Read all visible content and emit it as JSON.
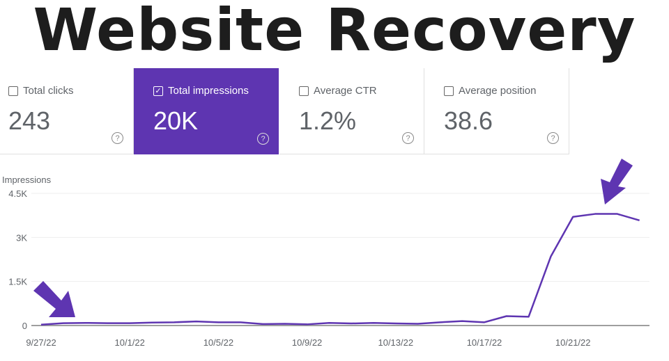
{
  "title": "Website Recovery",
  "cards": [
    {
      "label": "Total clicks",
      "value": "243",
      "checked": false
    },
    {
      "label": "Total impressions",
      "value": "20K",
      "checked": true
    },
    {
      "label": "Average CTR",
      "value": "1.2%",
      "checked": false
    },
    {
      "label": "Average position",
      "value": "38.6",
      "checked": false
    }
  ],
  "help_glyph": "?",
  "check_glyph": "✓",
  "colors": {
    "accent": "#5e35b1",
    "line": "#5e35b1"
  },
  "chart_data": {
    "type": "line",
    "ylabel": "Impressions",
    "ylim": [
      0,
      4500
    ],
    "yticks": [
      {
        "v": 0,
        "label": "0"
      },
      {
        "v": 1500,
        "label": "1.5K"
      },
      {
        "v": 3000,
        "label": "3K"
      },
      {
        "v": 4500,
        "label": "4.5K"
      }
    ],
    "xticks": [
      {
        "i": 0,
        "label": "9/27/22"
      },
      {
        "i": 4,
        "label": "10/1/22"
      },
      {
        "i": 8,
        "label": "10/5/22"
      },
      {
        "i": 12,
        "label": "10/9/22"
      },
      {
        "i": 16,
        "label": "10/13/22"
      },
      {
        "i": 20,
        "label": "10/17/22"
      },
      {
        "i": 24,
        "label": "10/21/22"
      }
    ],
    "x": [
      "9/27",
      "9/28",
      "9/29",
      "9/30",
      "10/1",
      "10/2",
      "10/3",
      "10/4",
      "10/5",
      "10/6",
      "10/7",
      "10/8",
      "10/9",
      "10/10",
      "10/11",
      "10/12",
      "10/13",
      "10/14",
      "10/15",
      "10/16",
      "10/17",
      "10/18",
      "10/19",
      "10/20",
      "10/21",
      "10/22",
      "10/23",
      "10/24"
    ],
    "series": [
      {
        "name": "Impressions",
        "values": [
          30,
          80,
          90,
          80,
          80,
          100,
          110,
          140,
          110,
          110,
          50,
          60,
          40,
          90,
          70,
          90,
          70,
          60,
          110,
          150,
          110,
          320,
          300,
          2350,
          3700,
          3800,
          3800,
          3580
        ]
      }
    ],
    "grid": true,
    "annotations": [
      "arrow pointing at start (low)",
      "arrow pointing at peak"
    ]
  }
}
